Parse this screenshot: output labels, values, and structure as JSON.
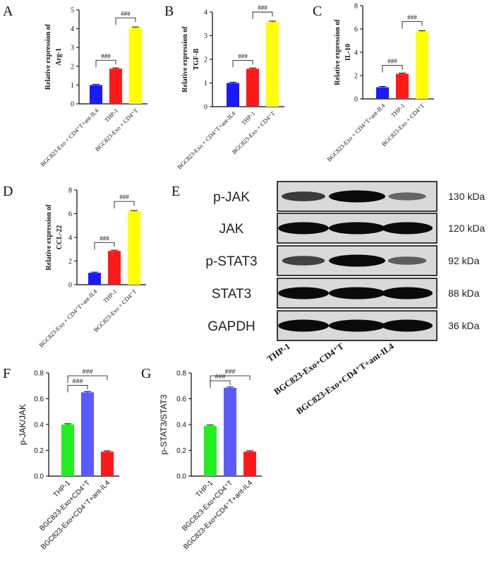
{
  "chart_data": [
    {
      "panel": "A",
      "type": "bar",
      "ylabel_lines": [
        "Relative expression of",
        "Arg-1"
      ],
      "ylim": [
        0,
        5
      ],
      "yticks": [
        0,
        1,
        2,
        3,
        4,
        5
      ],
      "categories": [
        "BGC823-Exo + CD4⁺T+ant-IL4",
        "THP-1",
        "BGC823-Exo + CD4⁺T"
      ],
      "values": [
        1.0,
        1.87,
        4.05
      ],
      "colors": [
        "#1a1aff",
        "#ff1a1a",
        "#ffff00"
      ],
      "significance": [
        {
          "from": 0,
          "to": 1,
          "label": "###"
        },
        {
          "from": 1,
          "to": 2,
          "label": "###"
        }
      ]
    },
    {
      "panel": "B",
      "type": "bar",
      "ylabel_lines": [
        "Relative expression of",
        "TGF-B"
      ],
      "ylim": [
        0,
        4
      ],
      "yticks": [
        0,
        1,
        2,
        3,
        4
      ],
      "categories": [
        "BGC823-Exo + CD4⁺T+ant-IL4",
        "THP-1",
        "BGC823-Exo + CD4⁺T"
      ],
      "values": [
        1.0,
        1.6,
        3.58
      ],
      "colors": [
        "#1a1aff",
        "#ff1a1a",
        "#ffff00"
      ],
      "significance": [
        {
          "from": 0,
          "to": 1,
          "label": "###"
        },
        {
          "from": 1,
          "to": 2,
          "label": "###"
        }
      ]
    },
    {
      "panel": "C",
      "type": "bar",
      "ylabel_lines": [
        "Relative expression of",
        "IL-10"
      ],
      "ylim": [
        0,
        8
      ],
      "yticks": [
        0,
        2,
        4,
        6,
        8
      ],
      "categories": [
        "BGC823-Exo + CD4⁺T+ant-IL4",
        "THP-1",
        "BGC823-Exo + CD4⁺T"
      ],
      "values": [
        1.0,
        2.15,
        5.78
      ],
      "colors": [
        "#1a1aff",
        "#ff1a1a",
        "#ffff00"
      ],
      "significance": [
        {
          "from": 0,
          "to": 1,
          "label": "###"
        },
        {
          "from": 1,
          "to": 2,
          "label": "###"
        }
      ]
    },
    {
      "panel": "D",
      "type": "bar",
      "ylabel_lines": [
        "Relative expression of",
        "CCL-22"
      ],
      "ylim": [
        0,
        8
      ],
      "yticks": [
        0,
        2,
        4,
        6,
        8
      ],
      "categories": [
        "BGC823-Exo + CD4⁺T+ant-IL4",
        "THP-1",
        "BGC823-Exo + CD4⁺T"
      ],
      "values": [
        1.0,
        2.85,
        6.2
      ],
      "colors": [
        "#1a1aff",
        "#ff1a1a",
        "#ffff00"
      ],
      "significance": [
        {
          "from": 0,
          "to": 1,
          "label": "###"
        },
        {
          "from": 1,
          "to": 2,
          "label": "###"
        }
      ]
    },
    {
      "panel": "F",
      "type": "bar",
      "ylabel": "p-JAK/JAK",
      "ylim": [
        0,
        0.8
      ],
      "yticks": [
        0.0,
        0.2,
        0.4,
        0.6,
        0.8
      ],
      "categories": [
        "THP-1",
        "BGC823-Exo+CD4⁺T",
        "BGC823-Exo+CD4⁺T+ant-IL4"
      ],
      "values": [
        0.4,
        0.65,
        0.19
      ],
      "colors": [
        "#22ee22",
        "#5a5aff",
        "#ff1a1a"
      ],
      "significance": [
        {
          "from": 0,
          "to": 1,
          "label": "###"
        },
        {
          "from": 0,
          "to": 2,
          "label": "###"
        }
      ]
    },
    {
      "panel": "G",
      "type": "bar",
      "ylabel": "p-STAT3/STAT3",
      "ylim": [
        0,
        0.8
      ],
      "yticks": [
        0.0,
        0.2,
        0.4,
        0.6,
        0.8
      ],
      "categories": [
        "THP-1",
        "BGC823-Exo+CD4⁺T",
        "BGC823-Exo+CD4⁺T+ant-IL4"
      ],
      "values": [
        0.39,
        0.685,
        0.19
      ],
      "colors": [
        "#22ee22",
        "#5a5aff",
        "#ff1a1a"
      ],
      "significance": [
        {
          "from": 0,
          "to": 1,
          "label": "###"
        },
        {
          "from": 0,
          "to": 2,
          "label": "###"
        }
      ]
    }
  ],
  "blot": {
    "panel": "E",
    "rows": [
      {
        "protein": "p-JAK",
        "size": "130 kDa",
        "bands": [
          0.65,
          1.0,
          0.35
        ]
      },
      {
        "protein": "JAK",
        "size": "120 kDa",
        "bands": [
          1.0,
          1.0,
          1.0
        ]
      },
      {
        "protein": "p-STAT3",
        "size": "92 kDa",
        "bands": [
          0.6,
          1.0,
          0.4
        ]
      },
      {
        "protein": "STAT3",
        "size": "88 kDa",
        "bands": [
          1.0,
          1.0,
          1.0
        ]
      },
      {
        "protein": "GAPDH",
        "size": "36 kDa",
        "bands": [
          1.0,
          1.0,
          1.0
        ]
      }
    ],
    "lanes": [
      "THP-1",
      "BGC823-Exo+CD4⁺T",
      "BGC823-Exo+CD4⁺T+ant-IL4"
    ]
  }
}
